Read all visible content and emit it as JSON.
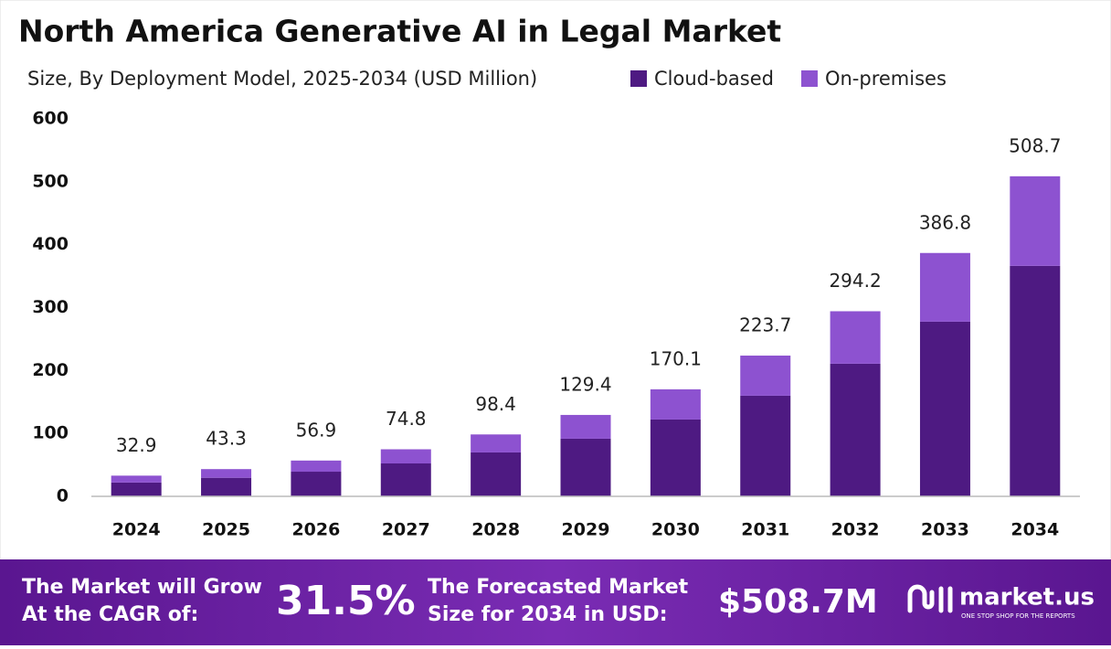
{
  "chart_data": {
    "type": "stacked-bar",
    "title": "North America Generative AI in Legal Market",
    "subtitle": "Size, By Deployment Model, 2025-2034 (USD Million)",
    "categories": [
      "2024",
      "2025",
      "2026",
      "2027",
      "2028",
      "2029",
      "2030",
      "2031",
      "2032",
      "2033",
      "2034"
    ],
    "series": [
      {
        "name": "Cloud-based",
        "color": "#4e1a82",
        "values": [
          22.0,
          29.5,
          39.2,
          52.3,
          69.8,
          91.6,
          122.1,
          159.9,
          210.8,
          277.6,
          366.3
        ]
      },
      {
        "name": "On-premises",
        "color": "#8d52d0",
        "values": [
          10.9,
          13.8,
          17.7,
          22.5,
          28.6,
          37.8,
          48.0,
          63.8,
          83.4,
          109.2,
          142.4
        ]
      }
    ],
    "totals": [
      32.9,
      43.3,
      56.9,
      74.8,
      98.4,
      129.4,
      170.1,
      223.7,
      294.2,
      386.8,
      508.7
    ],
    "ylim": [
      0,
      600
    ],
    "yticks": [
      0,
      100,
      200,
      300,
      400,
      500,
      600
    ],
    "grid": false
  },
  "footer": {
    "cagr_label": [
      "The Market will Grow",
      "At the CAGR of:"
    ],
    "cagr": "31.5%",
    "forecast_label": [
      "The Forecasted Market",
      "Size for 2034 in USD:"
    ],
    "forecast": "$508.7M",
    "brand": "market.us",
    "tagline": "ONE STOP SHOP FOR THE REPORTS"
  }
}
